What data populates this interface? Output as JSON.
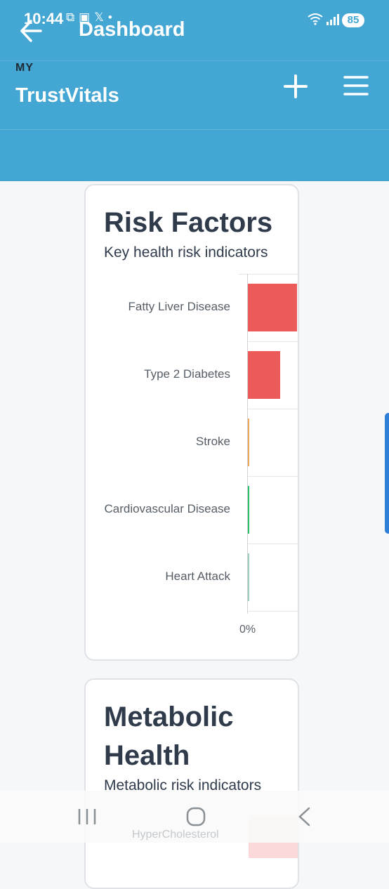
{
  "status_bar": {
    "time": "10:44",
    "battery": "85",
    "notification_icons": [
      "screenshot-icon",
      "gallery-icon",
      "x-icon",
      "dot-icon"
    ]
  },
  "header": {
    "page_title": "Dashboard",
    "brand_prefix": "MY",
    "brand_name": "TrustVitals",
    "background": "#44a6d2"
  },
  "risk_card": {
    "title": "Risk Factors",
    "subtitle": "Key health risk indicators",
    "x_tick": "0%"
  },
  "metabolic_card": {
    "title_line1": "Metabolic",
    "title_line2": "Health",
    "subtitle": "Metabolic risk indicators",
    "first_category": "HyperCholesterol"
  },
  "chart_data": {
    "type": "bar",
    "orientation": "horizontal",
    "categories": [
      "Fatty Liver Disease",
      "Type 2 Diabetes",
      "Stroke",
      "Cardiovascular Disease",
      "Heart Attack"
    ],
    "values": [
      100,
      65,
      2,
      1,
      0.5
    ],
    "colors": [
      "#ec5a5a",
      "#ec5a5a",
      "#f0a860",
      "#2fbf6b",
      "#9ecfb8"
    ],
    "xlabel": "",
    "ylabel": "",
    "grid": true
  }
}
